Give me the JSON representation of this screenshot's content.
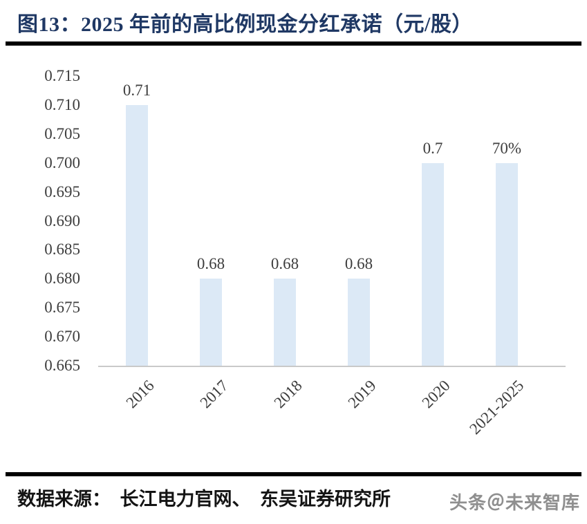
{
  "title": {
    "figure_label": "图13：",
    "text": "2025 年前的高比例现金分红承诺（元/股）"
  },
  "chart_data": {
    "type": "bar",
    "title": "2025 年前的高比例现金分红承诺（元/股）",
    "categories": [
      "2016",
      "2017",
      "2018",
      "2019",
      "2020",
      "2021-2025"
    ],
    "values": [
      0.71,
      0.68,
      0.68,
      0.68,
      0.7,
      0.7
    ],
    "data_labels": [
      "0.71",
      "0.68",
      "0.68",
      "0.68",
      "0.7",
      "70%"
    ],
    "xlabel": "",
    "ylabel": "",
    "ylim": [
      0.665,
      0.715
    ],
    "ytick_step": 0.005,
    "yticks": [
      "0.715",
      "0.710",
      "0.705",
      "0.700",
      "0.695",
      "0.690",
      "0.685",
      "0.680",
      "0.675",
      "0.670",
      "0.665"
    ],
    "grid": false,
    "legend": false,
    "bar_color": "#dce9f6",
    "axis_line_color": "#c9c9c9",
    "label_color": "#3d3d3d",
    "title_color": "#1f3864"
  },
  "footer": {
    "source": "数据来源：　长江电力官网、　东吴证券研究所",
    "watermark": "头条＠未来智库"
  }
}
